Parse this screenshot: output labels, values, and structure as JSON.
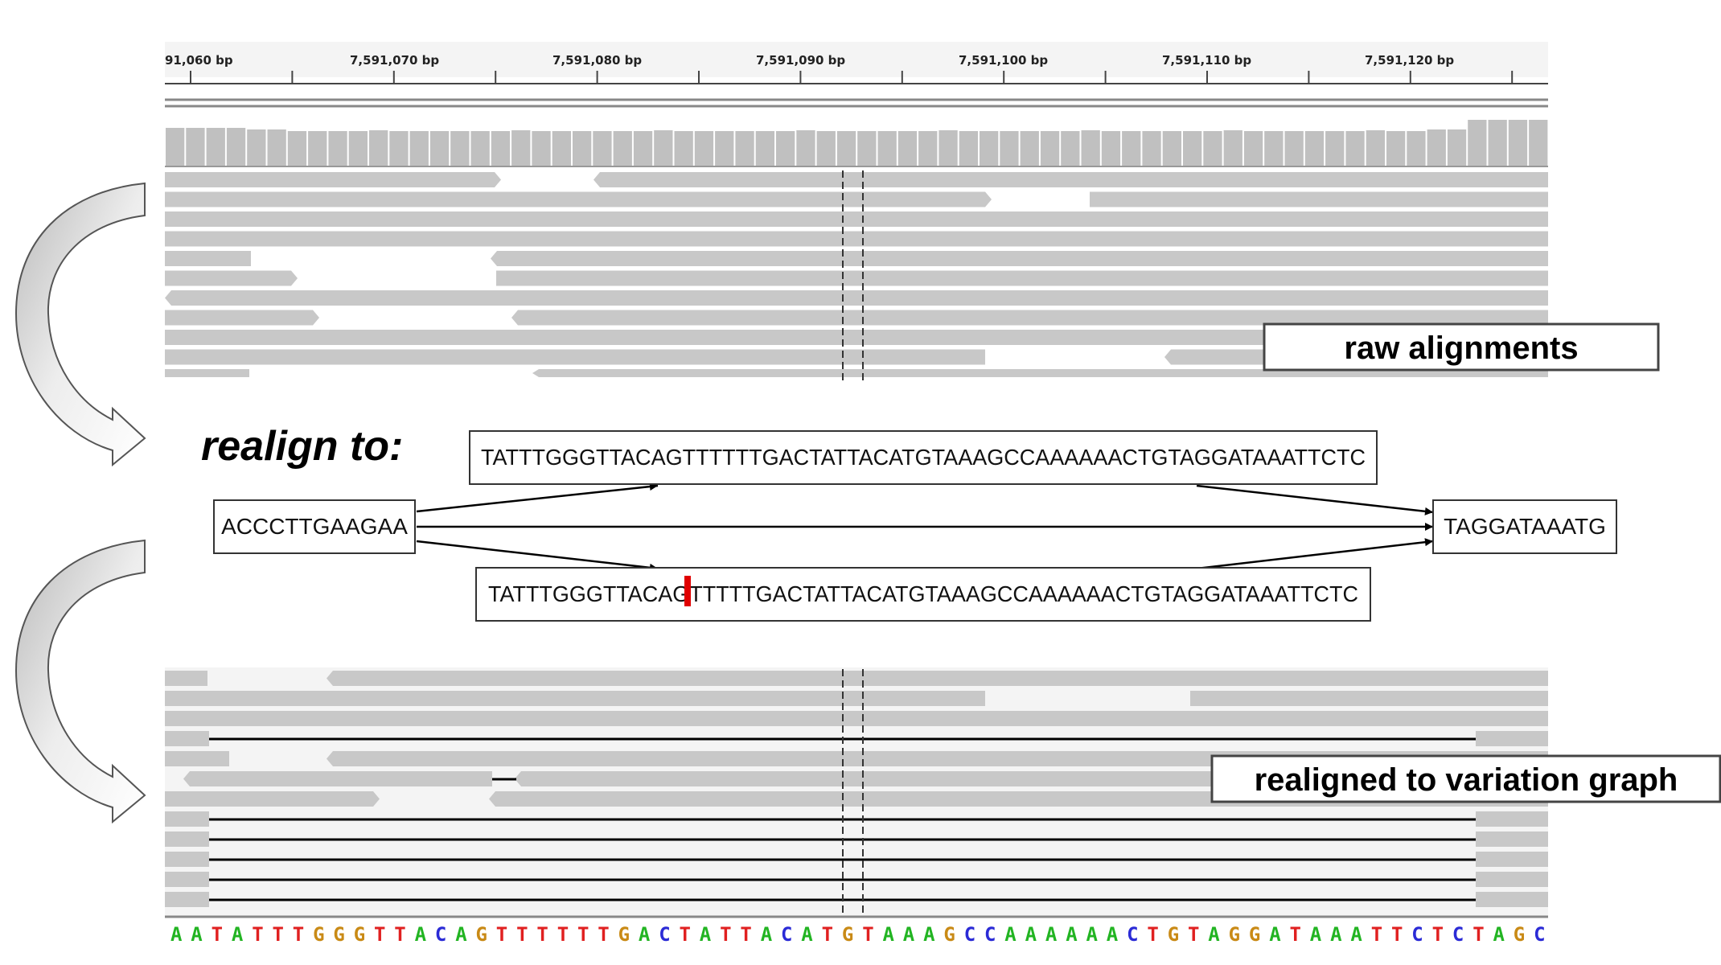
{
  "ruler": {
    "ticks": [
      "91,060 bp",
      "7,591,070 bp",
      "7,591,080 bp",
      "7,591,090 bp",
      "7,591,100 bp",
      "7,591,110 bp",
      "7,591,120 bp"
    ]
  },
  "labels": {
    "raw": "raw alignments",
    "realign_to": "realign to:",
    "realigned": "realigned to variation graph"
  },
  "graph": {
    "left_node": "ACCCTTGAAGAA",
    "top_node": "TATTTGGGTTACAGTTTTTTGACTATTACATGTAAAGCCAAAAAACTGTAGGATAAATTCTC",
    "bottom_node": "TATTTGGGTTACAGTTTTTGACTATTACATGTAAAGCCAAAAAACTGTAGGATAAATTCTC",
    "right_node": "TAGGATAAATG"
  },
  "reference": {
    "sequence": "AATATTTGGGTTACAGTTTTTTGACTATTACATGTAAAGCCAAAAAACTGTAGGATAAATTCTCTAGC",
    "colors": {
      "A": "#22b422",
      "C": "#2b2bd6",
      "G": "#c98a16",
      "T": "#e02020"
    }
  },
  "colors": {
    "read": "#c8c8c8",
    "coverage": "#c0c0c0",
    "deletion_marker": "#e00000",
    "arrow_fill": "#ececec",
    "arrow_stroke": "#555555"
  }
}
